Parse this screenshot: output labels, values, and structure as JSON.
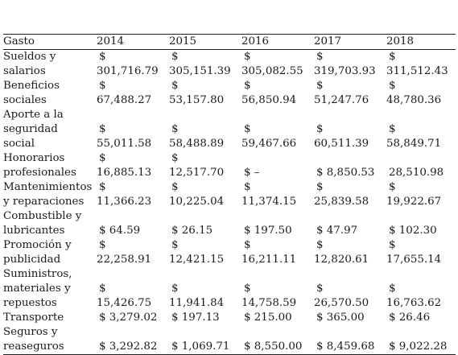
{
  "table": {
    "header": [
      "Gasto",
      "2014",
      "2015",
      "2016",
      "2017",
      "2018"
    ],
    "rows": [
      {
        "label_lines": [
          "Sueldos y",
          "salarios"
        ],
        "cells": [
          {
            "split": true,
            "currency": "$",
            "amount": "301,716.79"
          },
          {
            "split": true,
            "currency": "$",
            "amount": "305,151.39"
          },
          {
            "split": true,
            "currency": "$",
            "amount": "305,082.55"
          },
          {
            "split": true,
            "currency": "$",
            "amount": "319,703.93"
          },
          {
            "split": true,
            "currency": "$",
            "amount": "311,512.43"
          }
        ]
      },
      {
        "label_lines": [
          "Beneficios",
          "sociales"
        ],
        "cells": [
          {
            "split": true,
            "currency": "$",
            "amount": "67,488.27"
          },
          {
            "split": true,
            "currency": "$",
            "amount": "53,157.80"
          },
          {
            "split": true,
            "currency": "$",
            "amount": "56,850.94"
          },
          {
            "split": true,
            "currency": "$",
            "amount": "51,247.76"
          },
          {
            "split": true,
            "currency": "$",
            "amount": "48,780.36"
          }
        ]
      },
      {
        "label_lines": [
          "Aporte a la",
          "seguridad",
          "social"
        ],
        "cells": [
          {
            "split": true,
            "currency": "$",
            "amount": "55,011.58"
          },
          {
            "split": true,
            "currency": "$",
            "amount": "58,488.89"
          },
          {
            "split": true,
            "currency": "$",
            "amount": "59,467.66"
          },
          {
            "split": true,
            "currency": "$",
            "amount": "60,511.39"
          },
          {
            "split": true,
            "currency": "$",
            "amount": "58,849.71"
          }
        ]
      },
      {
        "label_lines": [
          "Honorarios",
          "profesionales"
        ],
        "cells": [
          {
            "split": true,
            "currency": "$",
            "amount": "16,885.13"
          },
          {
            "split": true,
            "currency": "$",
            "amount": "12,517.70"
          },
          {
            "split": false,
            "text": "$ –"
          },
          {
            "split": false,
            "text": "$ 8,850.53"
          },
          {
            "split": false,
            "text": "28,510.98"
          }
        ]
      },
      {
        "label_lines": [
          "Mantenimientos",
          " y reparaciones"
        ],
        "cells": [
          {
            "split": true,
            "currency": "$",
            "amount": "11,366.23"
          },
          {
            "split": true,
            "currency": "$",
            "amount": "10,225.04"
          },
          {
            "split": true,
            "currency": "$",
            "amount": "11,374.15"
          },
          {
            "split": true,
            "currency": "$",
            "amount": "25,839.58"
          },
          {
            "split": true,
            "currency": "$",
            "amount": "19,922.67"
          }
        ]
      },
      {
        "label_lines": [
          "Combustible y",
          "lubricantes"
        ],
        "cells": [
          {
            "split": false,
            "text": "$ 64.59"
          },
          {
            "split": false,
            "text": "$ 26.15"
          },
          {
            "split": false,
            "text": "$ 197.50"
          },
          {
            "split": false,
            "text": "$ 47.97"
          },
          {
            "split": false,
            "text": "$ 102.30"
          }
        ]
      },
      {
        "label_lines": [
          "Promoción y",
          "publicidad"
        ],
        "cells": [
          {
            "split": true,
            "currency": "$",
            "amount": "22,258.91"
          },
          {
            "split": true,
            "currency": "$",
            "amount": "12,421.15"
          },
          {
            "split": true,
            "currency": "$",
            "amount": "16,211.11"
          },
          {
            "split": true,
            "currency": "$",
            "amount": "12,820.61"
          },
          {
            "split": true,
            "currency": "$",
            "amount": "17,655.14"
          }
        ]
      },
      {
        "label_lines": [
          "Suministros,",
          "materiales y",
          "repuestos"
        ],
        "cells": [
          {
            "split": true,
            "currency": "$",
            "amount": "15,426.75"
          },
          {
            "split": true,
            "currency": "$",
            "amount": "11,941.84"
          },
          {
            "split": true,
            "currency": "$",
            "amount": "14,758.59"
          },
          {
            "split": true,
            "currency": "$",
            "amount": "26,570.50"
          },
          {
            "split": true,
            "currency": "$",
            "amount": "16,763.62"
          }
        ]
      },
      {
        "label_lines": [
          "Transporte"
        ],
        "cells": [
          {
            "split": false,
            "text": "$ 3,279.02"
          },
          {
            "split": false,
            "text": "$ 197.13"
          },
          {
            "split": false,
            "text": "$ 215.00"
          },
          {
            "split": false,
            "text": "$ 365.00"
          },
          {
            "split": false,
            "text": "$ 26.46"
          }
        ]
      },
      {
        "label_lines": [
          "Seguros y",
          "reaseguros"
        ],
        "cells": [
          {
            "split": false,
            "text": "$ 3,292.82"
          },
          {
            "split": false,
            "text": "$ 1,069.71"
          },
          {
            "split": false,
            "text": "$ 8,550.00"
          },
          {
            "split": false,
            "text": "$ 8,459.68"
          },
          {
            "split": false,
            "text": "$ 9,022.28"
          }
        ]
      }
    ]
  }
}
